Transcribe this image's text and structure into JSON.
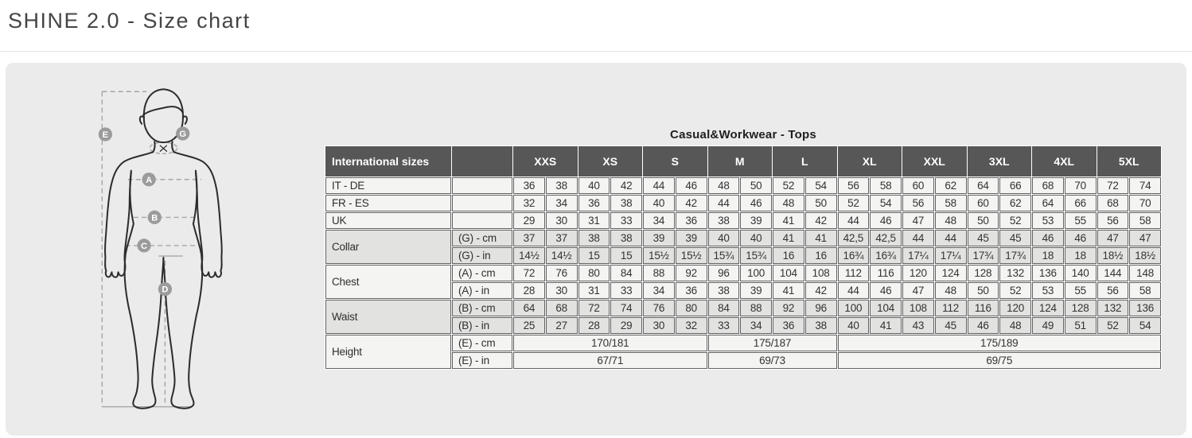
{
  "page": {
    "title": "SHINE 2.0 - Size chart"
  },
  "colors": {
    "header_bg": "#575757",
    "cell_light": "#f4f4f3",
    "cell_shaded": "#e2e2e1",
    "panel_bg": "#ebebeb"
  },
  "diagram": {
    "badges": [
      {
        "letter": "E"
      },
      {
        "letter": "G"
      },
      {
        "letter": "A"
      },
      {
        "letter": "B"
      },
      {
        "letter": "C"
      },
      {
        "letter": "D"
      }
    ]
  },
  "table": {
    "title": "Casual&Workwear - Tops",
    "header": {
      "corner": "International sizes",
      "sizes": [
        "XXS",
        "XS",
        "S",
        "M",
        "L",
        "XL",
        "XXL",
        "3XL",
        "4XL",
        "5XL"
      ]
    },
    "groups": [
      {
        "name": "",
        "shade": "light",
        "rows": [
          {
            "label": "IT - DE",
            "measure": "",
            "cells": [
              "36",
              "38",
              "40",
              "42",
              "44",
              "46",
              "48",
              "50",
              "52",
              "54",
              "56",
              "58",
              "60",
              "62",
              "64",
              "66",
              "68",
              "70",
              "72",
              "74"
            ]
          },
          {
            "label": "FR - ES",
            "measure": "",
            "cells": [
              "32",
              "34",
              "36",
              "38",
              "40",
              "42",
              "44",
              "46",
              "48",
              "50",
              "52",
              "54",
              "56",
              "58",
              "60",
              "62",
              "64",
              "66",
              "68",
              "70"
            ]
          },
          {
            "label": "UK",
            "measure": "",
            "cells": [
              "29",
              "30",
              "31",
              "33",
              "34",
              "36",
              "38",
              "39",
              "41",
              "42",
              "44",
              "46",
              "47",
              "48",
              "50",
              "52",
              "53",
              "55",
              "56",
              "58"
            ]
          }
        ]
      },
      {
        "name": "Collar",
        "shade": "shaded",
        "rows": [
          {
            "measure": "(G) - cm",
            "cells": [
              "37",
              "37",
              "38",
              "38",
              "39",
              "39",
              "40",
              "40",
              "41",
              "41",
              "42,5",
              "42,5",
              "44",
              "44",
              "45",
              "45",
              "46",
              "46",
              "47",
              "47"
            ]
          },
          {
            "measure": "(G) - in",
            "cells": [
              "14½",
              "14½",
              "15",
              "15",
              "15½",
              "15½",
              "15¾",
              "15¾",
              "16",
              "16",
              "16¾",
              "16¾",
              "17¼",
              "17¼",
              "17¾",
              "17¾",
              "18",
              "18",
              "18½",
              "18½"
            ]
          }
        ]
      },
      {
        "name": "Chest",
        "shade": "light",
        "rows": [
          {
            "measure": "(A) - cm",
            "cells": [
              "72",
              "76",
              "80",
              "84",
              "88",
              "92",
              "96",
              "100",
              "104",
              "108",
              "112",
              "116",
              "120",
              "124",
              "128",
              "132",
              "136",
              "140",
              "144",
              "148"
            ]
          },
          {
            "measure": "(A) - in",
            "cells": [
              "28",
              "30",
              "31",
              "33",
              "34",
              "36",
              "38",
              "39",
              "41",
              "42",
              "44",
              "46",
              "47",
              "48",
              "50",
              "52",
              "53",
              "55",
              "56",
              "58"
            ]
          }
        ]
      },
      {
        "name": "Waist",
        "shade": "shaded",
        "rows": [
          {
            "measure": "(B) - cm",
            "cells": [
              "64",
              "68",
              "72",
              "74",
              "76",
              "80",
              "84",
              "88",
              "92",
              "96",
              "100",
              "104",
              "108",
              "112",
              "116",
              "120",
              "124",
              "128",
              "132",
              "136"
            ]
          },
          {
            "measure": "(B) - in",
            "cells": [
              "25",
              "27",
              "28",
              "29",
              "30",
              "32",
              "33",
              "34",
              "36",
              "38",
              "40",
              "41",
              "43",
              "45",
              "46",
              "48",
              "49",
              "51",
              "52",
              "54"
            ]
          }
        ]
      },
      {
        "name": "Height",
        "shade": "light",
        "rows": [
          {
            "measure": "(E) - cm",
            "cells": [
              {
                "text": "170/181",
                "span": 6
              },
              {
                "text": "175/187",
                "span": 4
              },
              {
                "text": "175/189",
                "span": 10
              }
            ]
          },
          {
            "measure": "(E) - in",
            "cells": [
              {
                "text": "67/71",
                "span": 6
              },
              {
                "text": "69/73",
                "span": 4
              },
              {
                "text": "69/75",
                "span": 10
              }
            ]
          }
        ]
      }
    ]
  }
}
